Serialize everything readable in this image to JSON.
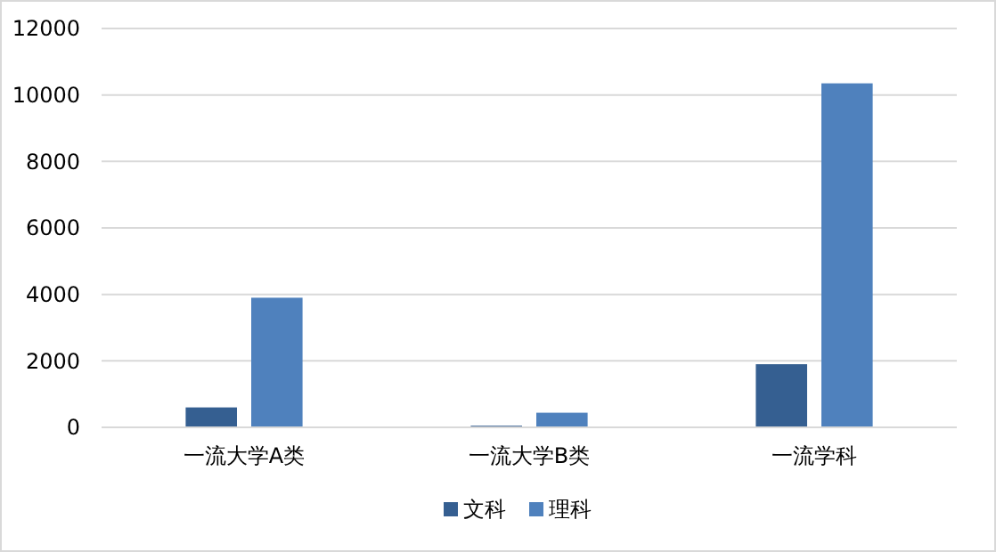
{
  "chart_data": {
    "type": "bar",
    "categories": [
      "一流大学A类",
      "一流大学B类",
      "一流学科"
    ],
    "series": [
      {
        "name": "文科",
        "color": "#355f91",
        "values": [
          600,
          50,
          1900
        ]
      },
      {
        "name": "理科",
        "color": "#4f81bd",
        "values": [
          3900,
          440,
          10350
        ]
      }
    ],
    "ylim": [
      0,
      12000
    ],
    "yticks": [
      0,
      2000,
      4000,
      6000,
      8000,
      10000,
      12000
    ],
    "grid": "y",
    "legend": "bottom"
  }
}
